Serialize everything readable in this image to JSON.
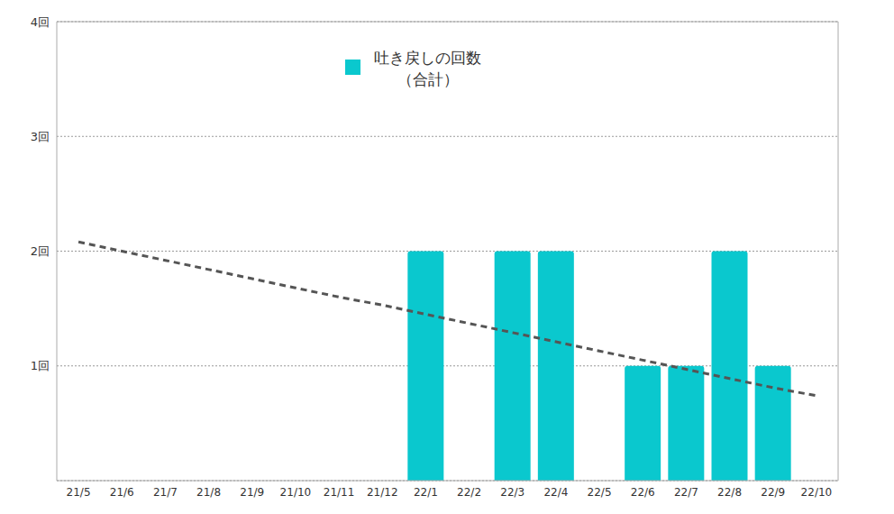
{
  "chart_data": {
    "type": "bar",
    "categories": [
      "21/5",
      "21/6",
      "21/7",
      "21/8",
      "21/9",
      "21/10",
      "21/11",
      "21/12",
      "22/1",
      "22/2",
      "22/3",
      "22/4",
      "22/5",
      "22/6",
      "22/7",
      "22/8",
      "22/9",
      "22/10"
    ],
    "series": [
      {
        "name": "吐き戻しの回数（合計）",
        "color": "#0ac8ce",
        "values": [
          0,
          0,
          0,
          0,
          0,
          0,
          0,
          0,
          2,
          0,
          2,
          2,
          0,
          1,
          1,
          2,
          1,
          0
        ]
      },
      {
        "type": "line",
        "line_style": "dashed",
        "color": "#555555",
        "values": [
          2.08,
          2.0,
          1.92,
          1.84,
          1.76,
          1.68,
          1.6,
          1.53,
          1.45,
          1.37,
          1.29,
          1.21,
          1.13,
          1.05,
          0.97,
          0.89,
          0.81,
          0.74
        ]
      }
    ],
    "ylim": [
      0,
      4
    ],
    "yticks": [
      {
        "value": 1,
        "label": "1回"
      },
      {
        "value": 2,
        "label": "2回"
      },
      {
        "value": 3,
        "label": "3回"
      },
      {
        "value": 4,
        "label": "4回"
      }
    ],
    "grid": true,
    "legend": "top"
  }
}
